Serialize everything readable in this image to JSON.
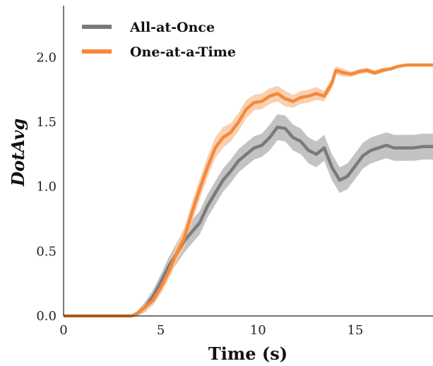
{
  "chart_data": {
    "type": "line",
    "title": "",
    "xlabel": "Time (s)",
    "ylabel": "DotAvg",
    "xlim": [
      0,
      19
    ],
    "ylim": [
      0,
      2.4
    ],
    "xticks": [
      0,
      5,
      10,
      15
    ],
    "yticks": [
      0.0,
      0.5,
      1.0,
      1.5,
      2.0
    ],
    "xtick_labels": [
      "0",
      "5",
      "10",
      "15"
    ],
    "ytick_labels": [
      "0.0",
      "0.5",
      "1.0",
      "1.5",
      "2.0"
    ],
    "grid": false,
    "legend_position": "top-left",
    "series": [
      {
        "name": "All-at-Once",
        "color": "#7a7a7a",
        "band_color": "#b8b8b8",
        "x": [
          0,
          3.0,
          3.5,
          3.8,
          4.2,
          4.6,
          5.0,
          5.4,
          5.8,
          6.2,
          6.6,
          7.0,
          7.4,
          7.8,
          8.2,
          8.6,
          9.0,
          9.4,
          9.8,
          10.2,
          10.6,
          11.0,
          11.4,
          11.8,
          12.2,
          12.6,
          13.0,
          13.4,
          13.8,
          14.2,
          14.6,
          15.0,
          15.4,
          15.8,
          16.2,
          16.6,
          17.0,
          17.5,
          18.0,
          18.5,
          19.0
        ],
        "y": [
          0.0,
          0.0,
          0.0,
          0.02,
          0.07,
          0.15,
          0.26,
          0.38,
          0.48,
          0.58,
          0.65,
          0.72,
          0.85,
          0.95,
          1.05,
          1.12,
          1.2,
          1.25,
          1.3,
          1.32,
          1.38,
          1.46,
          1.45,
          1.38,
          1.35,
          1.28,
          1.25,
          1.3,
          1.15,
          1.05,
          1.08,
          1.16,
          1.24,
          1.28,
          1.3,
          1.32,
          1.3,
          1.3,
          1.3,
          1.31,
          1.31
        ],
        "band": [
          0.0,
          0.0,
          0.0,
          0.02,
          0.04,
          0.05,
          0.06,
          0.07,
          0.08,
          0.09,
          0.09,
          0.09,
          0.09,
          0.09,
          0.09,
          0.09,
          0.09,
          0.09,
          0.09,
          0.09,
          0.1,
          0.1,
          0.1,
          0.1,
          0.1,
          0.1,
          0.1,
          0.1,
          0.1,
          0.1,
          0.1,
          0.1,
          0.1,
          0.1,
          0.1,
          0.1,
          0.1,
          0.1,
          0.1,
          0.1,
          0.1
        ]
      },
      {
        "name": "One-at-a-Time",
        "color": "#f5893a",
        "band_color": "#f8c8a4",
        "x": [
          0,
          3.0,
          3.5,
          3.8,
          4.2,
          4.6,
          5.0,
          5.4,
          5.8,
          6.2,
          6.6,
          7.0,
          7.4,
          7.8,
          8.2,
          8.6,
          9.0,
          9.4,
          9.8,
          10.2,
          10.6,
          11.0,
          11.4,
          11.8,
          12.2,
          12.6,
          13.0,
          13.4,
          13.8,
          14.0,
          14.4,
          14.8,
          15.2,
          15.6,
          16.0,
          16.4,
          16.8,
          17.2,
          17.6,
          18.0,
          18.5,
          19.0
        ],
        "y": [
          0.0,
          0.0,
          0.0,
          0.02,
          0.07,
          0.12,
          0.22,
          0.34,
          0.48,
          0.6,
          0.8,
          0.98,
          1.15,
          1.3,
          1.38,
          1.42,
          1.5,
          1.6,
          1.65,
          1.66,
          1.7,
          1.72,
          1.68,
          1.66,
          1.69,
          1.7,
          1.72,
          1.7,
          1.8,
          1.9,
          1.88,
          1.87,
          1.89,
          1.9,
          1.88,
          1.9,
          1.91,
          1.93,
          1.94,
          1.94,
          1.94,
          1.94
        ],
        "band": [
          0.0,
          0.0,
          0.0,
          0.02,
          0.03,
          0.04,
          0.05,
          0.06,
          0.07,
          0.08,
          0.08,
          0.08,
          0.08,
          0.08,
          0.08,
          0.07,
          0.07,
          0.07,
          0.06,
          0.06,
          0.06,
          0.06,
          0.06,
          0.05,
          0.05,
          0.05,
          0.05,
          0.04,
          0.04,
          0.03,
          0.03,
          0.02,
          0.02,
          0.02,
          0.02,
          0.02,
          0.01,
          0.01,
          0.01,
          0.01,
          0.01,
          0.01
        ]
      }
    ]
  }
}
